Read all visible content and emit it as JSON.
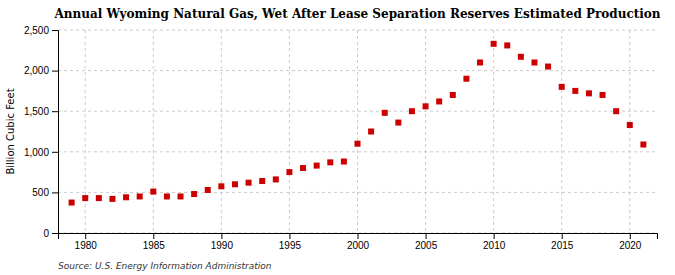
{
  "chart_data": {
    "type": "scatter",
    "title": "Annual Wyoming Natural Gas, Wet After Lease Separation Reserves Estimated Production",
    "ylabel": "Billion Cubic Feet",
    "annotations": [
      "Source: U.S. Energy Information Administration"
    ],
    "color": "#CC0000",
    "marker": "square",
    "grid": true,
    "x": [
      1979,
      1980,
      1981,
      1982,
      1983,
      1984,
      1985,
      1986,
      1987,
      1988,
      1989,
      1990,
      1991,
      1992,
      1993,
      1994,
      1995,
      1996,
      1997,
      1998,
      1999,
      2000,
      2001,
      2002,
      2003,
      2004,
      2005,
      2006,
      2007,
      2008,
      2009,
      2010,
      2011,
      2012,
      2013,
      2014,
      2015,
      2016,
      2017,
      2018,
      2019,
      2020,
      2021
    ],
    "values": [
      375,
      430,
      430,
      420,
      440,
      450,
      510,
      450,
      450,
      480,
      530,
      575,
      600,
      620,
      640,
      660,
      750,
      800,
      830,
      870,
      880,
      1100,
      1250,
      1480,
      1360,
      1500,
      1560,
      1620,
      1700,
      1900,
      2100,
      2330,
      2310,
      2170,
      2100,
      2050,
      1800,
      1750,
      1720,
      1700,
      1500,
      1330,
      1090
    ],
    "xlim": [
      1978,
      2022
    ],
    "ylim": [
      0,
      2500
    ],
    "xticks": [
      1980,
      1985,
      1990,
      1995,
      2000,
      2005,
      2010,
      2015,
      2020
    ],
    "yticks": [
      0,
      500,
      {
        "value": 1000,
        "label": "1,000"
      },
      {
        "value": 1500,
        "label": "1,500"
      },
      {
        "value": 2000,
        "label": "2,000"
      },
      {
        "value": 2500,
        "label": "2,500"
      }
    ]
  }
}
